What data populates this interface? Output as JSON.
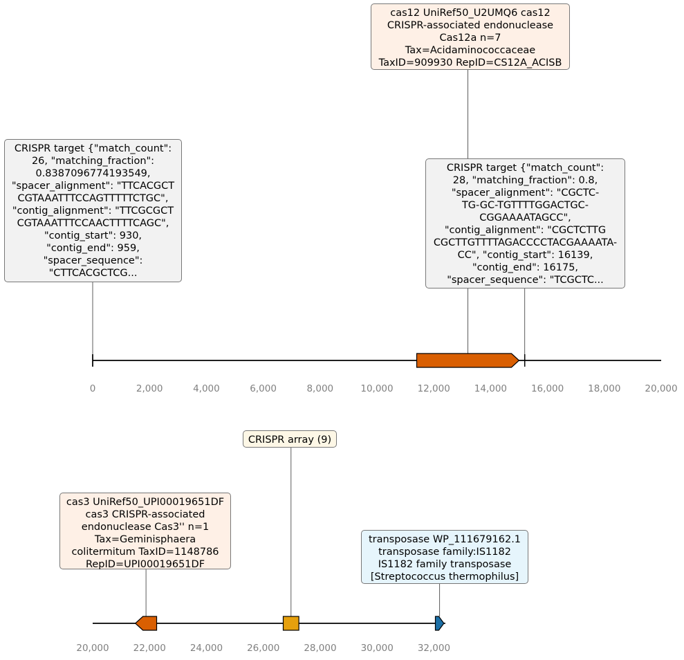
{
  "colors": {
    "cas_gene": "#d95f02",
    "crispr_array": "#e6a00d",
    "transposase": "#1c6fa6",
    "cas_label_bg": "#fef0e6",
    "target_label_bg": "#f2f2f2",
    "array_label_bg": "#fdf7e6",
    "transposase_label_bg": "#e6f5fc",
    "line": "#000000",
    "tick_text": "#808080"
  },
  "tracks": [
    {
      "range": [
        0,
        20000
      ],
      "ticks": [
        "0",
        "2,000",
        "4,000",
        "6,000",
        "8,000",
        "10,000",
        "12,000",
        "14,000",
        "16,000",
        "18,000",
        "20,000"
      ],
      "features": [
        {
          "kind": "crispr_target",
          "start": 0,
          "end": 0,
          "label": "CRISPR target {\"match_count\":\n26, \"matching_fraction\":\n0.8387096774193549,\n\"spacer_alignment\": \"TTCACGCT\nCGTAAATTTCCAGTTTTTCTGC\",\n\"contig_alignment\": \"TTCGCGCT\nCGTAAATTTCCAACTTTTCAGC\",\n\"contig_start\": 930,\n\"contig_end\": 959,\n\"spacer_sequence\":\n\"CTTCACGCTCG..."
        },
        {
          "kind": "cas_gene",
          "start": 11400,
          "end": 15000,
          "strand": "+",
          "label": "cas12 UniRef50_U2UMQ6 cas12\nCRISPR-associated endonuclease\nCas12a n=7\nTax=Acidaminococcaceae\nTaxID=909930 RepID=CS12A_ACISB"
        },
        {
          "kind": "crispr_target",
          "start": 15200,
          "end": 15200,
          "label": "CRISPR target {\"match_count\":\n28, \"matching_fraction\": 0.8,\n\"spacer_alignment\": \"CGCTC-\nTG-GC-TGTTTTGGACTGC-\nCGGAAAATAGCC\",\n\"contig_alignment\": \"CGCTCTTG\nCGCTTGTTTTAGACCCCTACGAAAATA-\nCC\", \"contig_start\": 16139,\n\"contig_end\": 16175,\n\"spacer_sequence\": \"TCGCTC..."
        }
      ]
    },
    {
      "range": [
        20000,
        32500
      ],
      "ticks": [
        "20,000",
        "22,000",
        "24,000",
        "26,000",
        "28,000",
        "30,000",
        "32,000"
      ],
      "features": [
        {
          "kind": "cas_gene",
          "start": 21500,
          "end": 22250,
          "strand": "-",
          "label": "cas3 UniRef50_UPI00019651DF\ncas3 CRISPR-associated\nendonuclease Cas3'' n=1\nTax=Geminisphaera\ncolitermitum TaxID=1148786\nRepID=UPI00019651DF"
        },
        {
          "kind": "crispr_array",
          "start": 26700,
          "end": 27250,
          "label": "CRISPR array (9)"
        },
        {
          "kind": "transposase",
          "start": 32050,
          "end": 32350,
          "strand": "+",
          "label": "transposase WP_111679162.1\ntransposase family:IS1182\nIS1182 family transposase\n[Streptococcus thermophilus]"
        }
      ]
    }
  ]
}
